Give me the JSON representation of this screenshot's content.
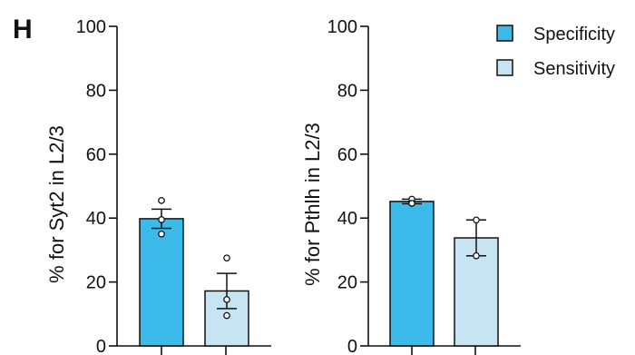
{
  "panel_letter": "H",
  "colors": {
    "specificity": "#3cbbea",
    "sensitivity": "#c7e4f3",
    "stroke": "#111111"
  },
  "legend": {
    "placement": "top-right",
    "items": [
      {
        "label": "Specificity",
        "color": "#3cbbea"
      },
      {
        "label": "Sensitivity",
        "color": "#c7e4f3"
      }
    ]
  },
  "chart_data": [
    {
      "type": "bar",
      "ylabel": "% for Syt2 in L2/3",
      "ylim": [
        0,
        100
      ],
      "yticks": [
        0,
        20,
        40,
        60,
        80,
        100
      ],
      "categories": [
        "Specificity",
        "Sensitivity"
      ],
      "values": [
        39.8,
        17.2
      ],
      "error": [
        3.0,
        5.5
      ],
      "points": [
        [
          45.5,
          39.5,
          35.0
        ],
        [
          27.5,
          14.5,
          9.5
        ]
      ]
    },
    {
      "type": "bar",
      "ylabel": "% for Pthlh in L2/3",
      "ylim": [
        0,
        100
      ],
      "yticks": [
        0,
        20,
        40,
        60,
        80,
        100
      ],
      "categories": [
        "Specificity",
        "Sensitivity"
      ],
      "values": [
        45.2,
        33.8
      ],
      "error": [
        0.7,
        5.6
      ],
      "points": [
        [
          45.9,
          44.6
        ],
        [
          39.4,
          28.2
        ]
      ]
    }
  ]
}
